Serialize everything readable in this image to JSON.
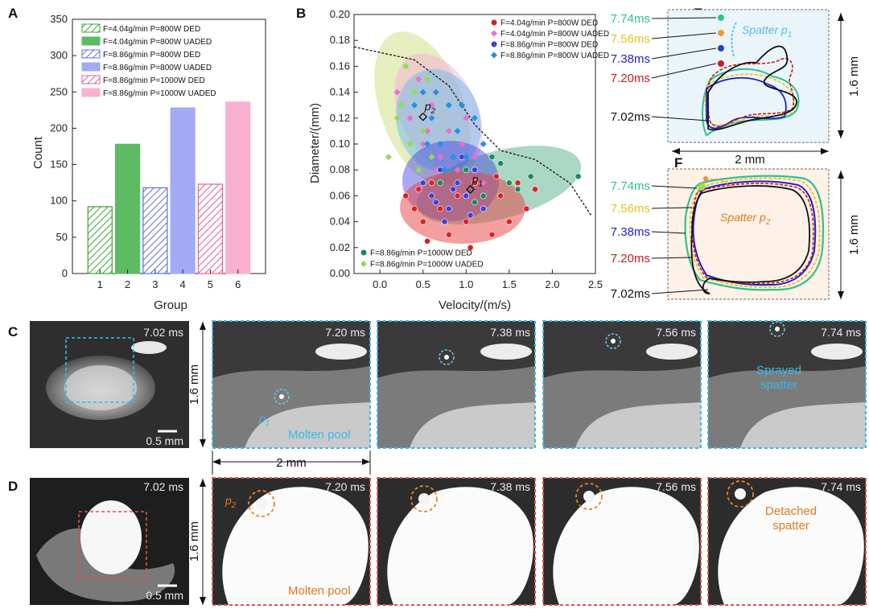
{
  "panels": {
    "A": "A",
    "B": "B",
    "C": "C",
    "D": "D",
    "E": "E",
    "F": "F"
  },
  "chart_data": [
    {
      "id": "A",
      "type": "bar",
      "xlabel": "Group",
      "ylabel": "Count",
      "ylim": [
        0,
        350
      ],
      "yticks": [
        0,
        50,
        100,
        150,
        200,
        250,
        300,
        350
      ],
      "categories": [
        "1",
        "2",
        "3",
        "4",
        "5",
        "6"
      ],
      "values": [
        92,
        178,
        118,
        228,
        123,
        236
      ],
      "colors": [
        "#3aa33a",
        "#5dbb63",
        "#5f6ed8",
        "#a3aaf5",
        "#e0609a",
        "#f8b0d0"
      ],
      "hatched": [
        true,
        false,
        true,
        false,
        true,
        false
      ],
      "legend": [
        "F=4.04g/min P=800W  DED",
        "F=4.04g/min P=800W  UADED",
        "F=8.86g/min P=800W  DED",
        "F=8.86g/min P=800W  UADED",
        "F=8.86g/min P=1000W  DED",
        "F=8.86g/min P=1000W  UADED"
      ]
    },
    {
      "id": "B",
      "type": "scatter",
      "xlabel": "Velocity/(m/s)",
      "ylabel": "Diameter/(mm)",
      "xlim": [
        -0.3,
        2.5
      ],
      "ylim": [
        0.0,
        0.2
      ],
      "xticks": [
        "0.0",
        "0.5",
        "1.0",
        "1.5",
        "2.0",
        "2.5"
      ],
      "yticks": [
        "0.00",
        "0.02",
        "0.04",
        "0.06",
        "0.08",
        "0.10",
        "0.12",
        "0.14",
        "0.16",
        "0.18",
        "0.20"
      ],
      "legend_top": [
        "F=4.04g/min P=800W  DED",
        "F=4.04g/min P=800W  UADED",
        "F=8.86g/min P=800W  DED",
        "F=8.86g/min P=800W  UADED"
      ],
      "legend_bottom": [
        "F=8.86g/min P=1000W  DED",
        "F=8.86g/min P=1000W  UADED"
      ],
      "series": [
        {
          "name": "F=4.04g/min P=800W DED",
          "marker": "circle",
          "color": "#e02020",
          "points": [
            [
              0.3,
              0.06
            ],
            [
              0.4,
              0.05
            ],
            [
              0.5,
              0.04
            ],
            [
              0.6,
              0.07
            ],
            [
              0.7,
              0.05
            ],
            [
              0.8,
              0.03
            ],
            [
              0.9,
              0.06
            ],
            [
              1.0,
              0.04
            ],
            [
              1.1,
              0.07
            ],
            [
              1.2,
              0.05
            ],
            [
              1.3,
              0.03
            ],
            [
              1.4,
              0.06
            ],
            [
              1.5,
              0.04
            ],
            [
              1.6,
              0.07
            ],
            [
              1.7,
              0.05
            ],
            [
              1.8,
              0.065
            ],
            [
              0.55,
              0.025
            ],
            [
              1.05,
              0.02
            ],
            [
              1.35,
              0.075
            ],
            [
              0.45,
              0.065
            ]
          ]
        },
        {
          "name": "F=4.04g/min P=800W UADED",
          "marker": "diamond",
          "color": "#f06ad0",
          "points": [
            [
              0.2,
              0.14
            ],
            [
              0.35,
              0.12
            ],
            [
              0.5,
              0.1
            ],
            [
              0.6,
              0.13
            ],
            [
              0.7,
              0.09
            ],
            [
              0.8,
              0.11
            ],
            [
              0.9,
              0.08
            ],
            [
              1.0,
              0.12
            ],
            [
              1.1,
              0.09
            ],
            [
              1.2,
              0.07
            ],
            [
              0.45,
              0.15
            ],
            [
              0.65,
              0.08
            ],
            [
              0.95,
              0.1
            ],
            [
              0.55,
              0.11
            ]
          ]
        },
        {
          "name": "F=8.86g/min P=800W DED",
          "marker": "circle",
          "color": "#4040d8",
          "points": [
            [
              0.5,
              0.07
            ],
            [
              0.6,
              0.06
            ],
            [
              0.7,
              0.08
            ],
            [
              0.8,
              0.05
            ],
            [
              0.9,
              0.07
            ],
            [
              1.0,
              0.06
            ],
            [
              1.1,
              0.08
            ],
            [
              1.2,
              0.05
            ],
            [
              0.75,
              0.04
            ],
            [
              0.95,
              0.09
            ],
            [
              1.05,
              0.045
            ],
            [
              0.65,
              0.055
            ],
            [
              0.85,
              0.065
            ]
          ]
        },
        {
          "name": "F=8.86g/min P=800W UADED",
          "marker": "diamond",
          "color": "#2090e8",
          "points": [
            [
              0.4,
              0.13
            ],
            [
              0.5,
              0.14
            ],
            [
              0.6,
              0.12
            ],
            [
              0.7,
              0.1
            ],
            [
              0.8,
              0.13
            ],
            [
              0.9,
              0.11
            ],
            [
              1.0,
              0.09
            ],
            [
              1.1,
              0.12
            ],
            [
              0.55,
              0.1
            ],
            [
              0.75,
              0.08
            ],
            [
              0.65,
              0.14
            ],
            [
              0.95,
              0.13
            ],
            [
              1.2,
              0.1
            ],
            [
              0.85,
              0.09
            ]
          ]
        },
        {
          "name": "F=8.86g/min P=1000W DED",
          "marker": "circle",
          "color": "#1a8a5a",
          "points": [
            [
              0.7,
              0.07
            ],
            [
              1.0,
              0.08
            ],
            [
              1.2,
              0.06
            ],
            [
              1.3,
              0.09
            ],
            [
              1.5,
              0.07
            ],
            [
              1.6,
              0.065
            ],
            [
              1.75,
              0.075
            ],
            [
              2.3,
              0.075
            ],
            [
              1.4,
              0.085
            ],
            [
              1.1,
              0.055
            ]
          ]
        },
        {
          "name": "F=8.86g/min P=1000W UADED",
          "marker": "diamond",
          "color": "#8fdc55",
          "points": [
            [
              0.1,
              0.09
            ],
            [
              0.2,
              0.12
            ],
            [
              0.3,
              0.16
            ],
            [
              0.4,
              0.14
            ],
            [
              0.5,
              0.11
            ],
            [
              0.6,
              0.09
            ],
            [
              0.45,
              0.08
            ],
            [
              0.35,
              0.1
            ],
            [
              0.25,
              0.13
            ],
            [
              0.55,
              0.15
            ]
          ]
        }
      ],
      "p2": {
        "label": "p",
        "sub": "2",
        "x": 0.5,
        "y": 0.121
      },
      "p1": {
        "label": "p",
        "sub": "1",
        "x": 1.05,
        "y": 0.065
      },
      "envelope": [
        [
          -0.3,
          0.175
        ],
        [
          0.4,
          0.165
        ],
        [
          0.8,
          0.145
        ],
        [
          1.1,
          0.115
        ],
        [
          1.4,
          0.095
        ],
        [
          1.8,
          0.088
        ],
        [
          2.2,
          0.07
        ],
        [
          2.45,
          0.045
        ]
      ]
    }
  ],
  "panel_E": {
    "times": [
      "7.74ms",
      "7.56ms",
      "7.38ms",
      "7.20ms",
      "7.02ms"
    ],
    "colors": [
      "#2ec28a",
      "#e8c020",
      "#2020d0",
      "#c02020",
      "#111111"
    ],
    "label": "Spatter p",
    "label_sub": "1",
    "scale_v": "1.6 mm",
    "scale_h": "2 mm"
  },
  "panel_F": {
    "times": [
      "7.74ms",
      "7.56ms",
      "7.38ms",
      "7.20ms",
      "7.02ms"
    ],
    "colors": [
      "#2ec28a",
      "#e8c020",
      "#2020d0",
      "#c02020",
      "#111111"
    ],
    "label": "Spatter p",
    "label_sub": "2",
    "scale_v": "1.6 mm"
  },
  "panel_C": {
    "overview_time": "7.02 ms",
    "scale_bar": "0.5 mm",
    "scale_v": "1.6 mm",
    "scale_h": "2 mm",
    "frames": [
      "7.20 ms",
      "7.38 ms",
      "7.56 ms",
      "7.74 ms"
    ],
    "p_label": "p",
    "p_sub": "1",
    "molten": "Molten pool",
    "sprayed1": "Sprayed",
    "sprayed2": "spatter"
  },
  "panel_D": {
    "overview_time": "7.02 ms",
    "scale_bar": "0.5 mm",
    "scale_v": "1.6 mm",
    "frames": [
      "7.20 ms",
      "7.38 ms",
      "7.56 ms",
      "7.74 ms"
    ],
    "p_label": "p",
    "p_sub": "2",
    "molten": "Molten pool",
    "detached1": "Detached",
    "detached2": "spatter"
  }
}
